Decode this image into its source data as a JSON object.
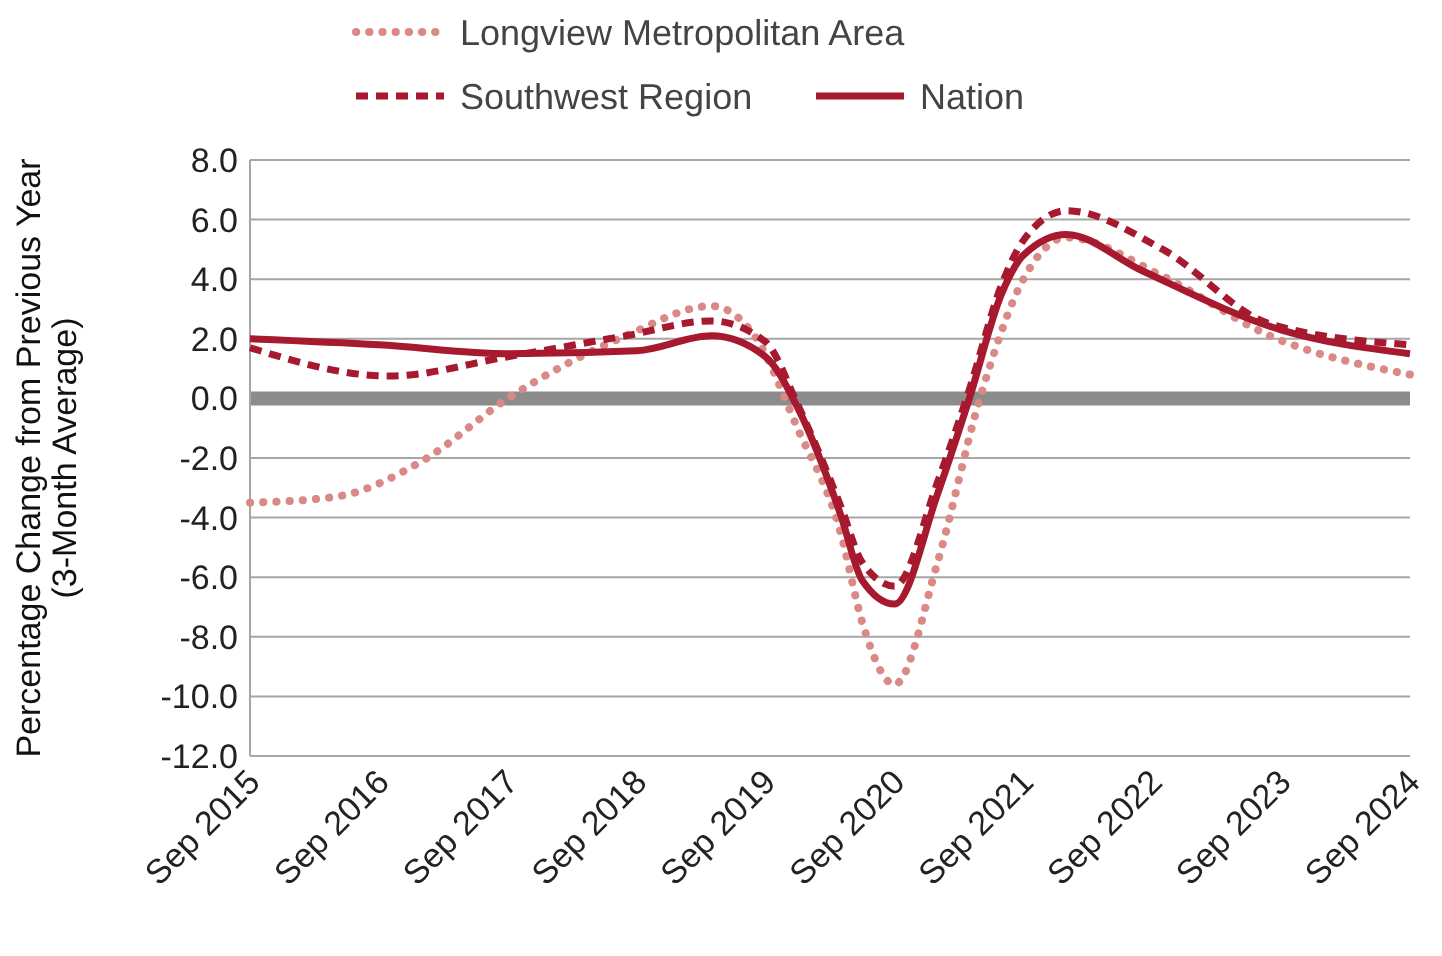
{
  "chart_data": {
    "type": "line",
    "ylabel": "Percentage Change from Previous Year\n(3-Month Average)",
    "xlim": [
      "2015-09",
      "2024-09"
    ],
    "xticks": [
      {
        "value": "2015-09",
        "label": "Sep 2015"
      },
      {
        "value": "2016-09",
        "label": "Sep 2016"
      },
      {
        "value": "2017-09",
        "label": "Sep 2017"
      },
      {
        "value": "2018-09",
        "label": "Sep 2018"
      },
      {
        "value": "2019-09",
        "label": "Sep 2019"
      },
      {
        "value": "2020-09",
        "label": "Sep 2020"
      },
      {
        "value": "2021-09",
        "label": "Sep 2021"
      },
      {
        "value": "2022-09",
        "label": "Sep 2022"
      },
      {
        "value": "2023-09",
        "label": "Sep 2023"
      },
      {
        "value": "2024-09",
        "label": "Sep 2024"
      }
    ],
    "ylim": [
      -12,
      8
    ],
    "yticks": [
      {
        "value": -12,
        "label": "-12.0"
      },
      {
        "value": -10,
        "label": "-10.0"
      },
      {
        "value": -8,
        "label": "-8.0"
      },
      {
        "value": -6,
        "label": "-6.0"
      },
      {
        "value": -4,
        "label": "-4.0"
      },
      {
        "value": -2,
        "label": "-2.0"
      },
      {
        "value": 0,
        "label": "0.0"
      },
      {
        "value": 2,
        "label": "2.0"
      },
      {
        "value": 4,
        "label": "4.0"
      },
      {
        "value": 6,
        "label": "6.0"
      },
      {
        "value": 8,
        "label": "8.0"
      }
    ],
    "grid": "y",
    "legend": "top",
    "ref_lines": [
      {
        "axis": "y",
        "value": 0,
        "color": "#8c8c8c"
      }
    ],
    "series": [
      {
        "name": "Longview Metropolitan Area",
        "color": "#d98a86",
        "line_style": "dotted",
        "x": [
          "2015-09",
          "2016-05",
          "2017-01",
          "2017-09",
          "2018-08",
          "2019-04",
          "2019-08",
          "2019-12",
          "2020-04",
          "2020-06",
          "2020-09",
          "2021-01",
          "2021-05",
          "2021-09",
          "2022-01",
          "2022-10",
          "2023-08",
          "2024-09"
        ],
        "values": [
          -3.5,
          -3.3,
          -2.1,
          0,
          2.1,
          3.1,
          2.1,
          -1.0,
          -4.5,
          -7.5,
          -9.6,
          -5.5,
          0,
          4.0,
          5.4,
          4.1,
          2.1,
          0.8
        ]
      },
      {
        "name": "Southwest Region",
        "color": "#a6192e",
        "line_style": "dashed",
        "x": [
          "2015-09",
          "2016-10",
          "2017-09",
          "2018-08",
          "2019-04",
          "2019-09",
          "2019-12",
          "2020-04",
          "2020-06",
          "2020-09",
          "2021-01",
          "2021-04",
          "2021-07",
          "2021-09",
          "2022-01",
          "2022-10",
          "2023-08",
          "2024-09"
        ],
        "values": [
          1.7,
          0.75,
          1.4,
          2.1,
          2.6,
          1.9,
          -0.2,
          -3.6,
          -5.5,
          -6.3,
          -2.8,
          0.3,
          3.8,
          5.3,
          6.3,
          5.0,
          2.5,
          1.8
        ]
      },
      {
        "name": "Nation",
        "color": "#a6192e",
        "line_style": "solid",
        "x": [
          "2015-09",
          "2016-09",
          "2017-09",
          "2018-09",
          "2019-04",
          "2019-09",
          "2019-12",
          "2020-04",
          "2020-06",
          "2020-09",
          "2021-01",
          "2021-04",
          "2021-07",
          "2021-09",
          "2022-01",
          "2022-08",
          "2023-09",
          "2024-09"
        ],
        "values": [
          2.0,
          1.8,
          1.5,
          1.6,
          2.1,
          1.4,
          -0.3,
          -3.9,
          -6.1,
          -6.9,
          -3.2,
          0,
          3.5,
          4.8,
          5.5,
          4.3,
          2.3,
          1.5
        ]
      }
    ]
  }
}
